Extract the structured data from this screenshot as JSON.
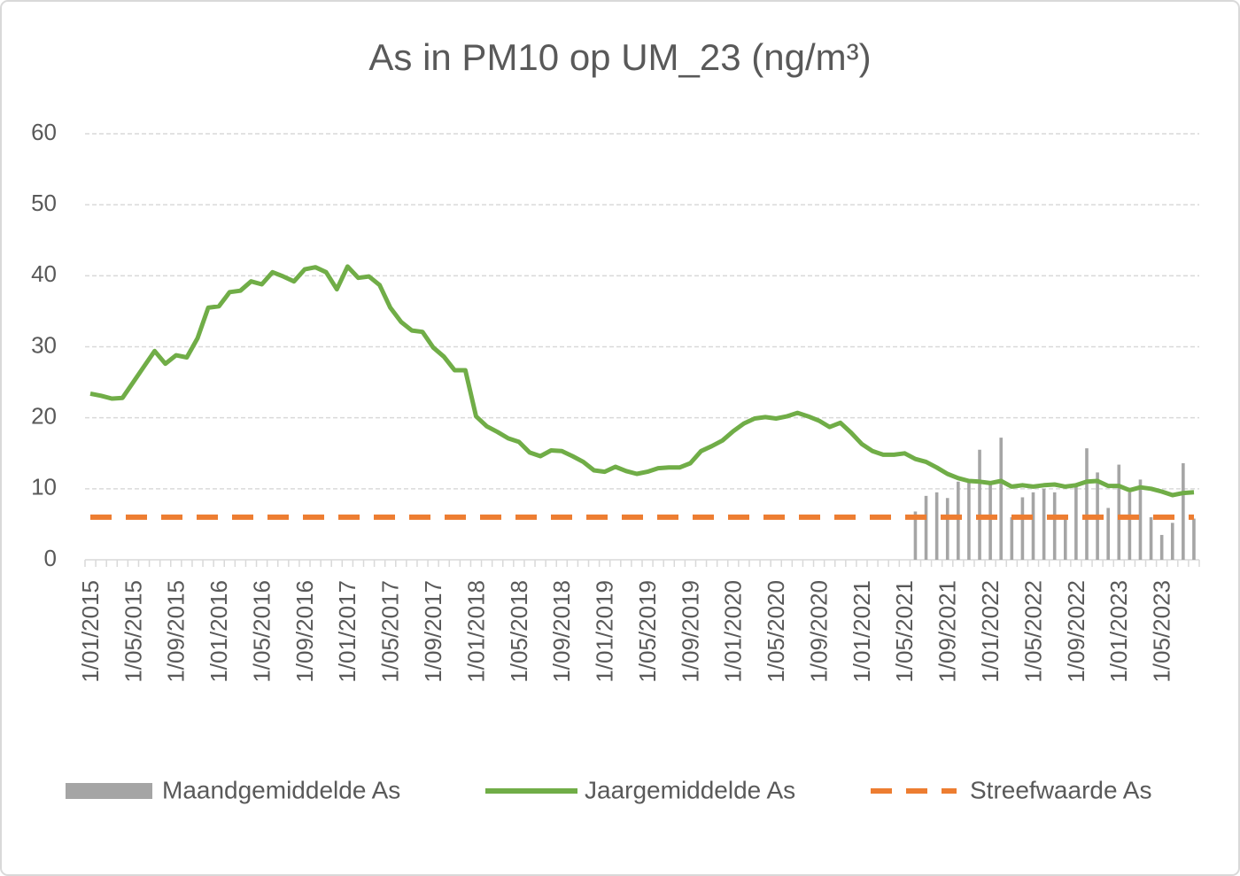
{
  "chart_data": {
    "type": "bar-line",
    "title": "As in PM10 op UM_23 (ng/m³)",
    "categories": [
      "1/01/2015",
      null,
      null,
      null,
      "1/05/2015",
      null,
      null,
      null,
      "1/09/2015",
      null,
      null,
      null,
      "1/01/2016",
      null,
      null,
      null,
      "1/05/2016",
      null,
      null,
      null,
      "1/09/2016",
      null,
      null,
      null,
      "1/01/2017",
      null,
      null,
      null,
      "1/05/2017",
      null,
      null,
      null,
      "1/09/2017",
      null,
      null,
      null,
      "1/01/2018",
      null,
      null,
      null,
      "1/05/2018",
      null,
      null,
      null,
      "1/09/2018",
      null,
      null,
      null,
      "1/01/2019",
      null,
      null,
      null,
      "1/05/2019",
      null,
      null,
      null,
      "1/09/2019",
      null,
      null,
      null,
      "1/01/2020",
      null,
      null,
      null,
      "1/05/2020",
      null,
      null,
      null,
      "1/09/2020",
      null,
      null,
      null,
      "1/01/2021",
      null,
      null,
      null,
      "1/05/2021",
      null,
      null,
      null,
      "1/09/2021",
      null,
      null,
      null,
      "1/01/2022",
      null,
      null,
      null,
      "1/05/2022",
      null,
      null,
      null,
      "1/09/2022",
      null,
      null,
      null,
      "1/01/2023",
      null,
      null,
      null,
      "1/05/2023",
      null,
      null,
      null
    ],
    "series": [
      {
        "name": "Maandgemiddelde As",
        "type": "bar",
        "color": "#a5a5a5",
        "values": [
          null,
          null,
          null,
          null,
          null,
          null,
          null,
          null,
          null,
          null,
          null,
          null,
          null,
          null,
          null,
          null,
          null,
          null,
          null,
          null,
          null,
          null,
          null,
          null,
          null,
          null,
          null,
          null,
          null,
          null,
          null,
          null,
          null,
          null,
          null,
          null,
          null,
          null,
          null,
          null,
          null,
          null,
          null,
          null,
          null,
          null,
          null,
          null,
          null,
          null,
          null,
          null,
          null,
          null,
          null,
          null,
          null,
          null,
          null,
          null,
          null,
          null,
          null,
          null,
          null,
          null,
          null,
          null,
          null,
          null,
          null,
          null,
          null,
          null,
          null,
          null,
          null,
          6.8,
          9,
          9.5,
          8.7,
          11,
          11,
          15.5,
          11,
          17.2,
          6,
          8.8,
          9.5,
          10,
          9.5,
          5.8,
          10.5,
          15.7,
          12.3,
          7.3,
          13.4,
          9.5,
          11.3,
          6,
          3.5,
          5.2,
          13.6,
          5.8
        ]
      },
      {
        "name": "Jaargemiddelde As",
        "type": "line",
        "color": "#70ad47",
        "values": [
          23.4,
          23.1,
          22.7,
          22.8,
          25,
          27.2,
          29.4,
          27.6,
          28.8,
          28.5,
          31.2,
          35.5,
          35.7,
          37.7,
          37.9,
          39.2,
          38.8,
          40.5,
          39.9,
          39.2,
          40.9,
          41.2,
          40.5,
          38.1,
          41.3,
          39.7,
          39.9,
          38.7,
          35.5,
          33.5,
          32.3,
          32.1,
          29.9,
          28.6,
          26.7,
          26.7,
          20.2,
          18.8,
          18,
          17.1,
          16.6,
          15.1,
          14.6,
          15.4,
          15.3,
          14.6,
          13.8,
          12.6,
          12.4,
          13.1,
          12.5,
          12.1,
          12.4,
          12.9,
          13,
          13,
          13.6,
          15.3,
          16,
          16.8,
          18.1,
          19.2,
          19.9,
          20.1,
          19.9,
          20.2,
          20.7,
          20.2,
          19.6,
          18.7,
          19.3,
          17.9,
          16.3,
          15.3,
          14.8,
          14.8,
          15,
          14.2,
          13.8,
          13,
          12.1,
          11.5,
          11.1,
          11,
          10.8,
          11.1,
          10.3,
          10.5,
          10.3,
          10.5,
          10.6,
          10.3,
          10.5,
          11,
          11.1,
          10.4,
          10.4,
          9.8,
          10.2,
          10,
          9.6,
          9.1,
          9.4,
          9.5
        ]
      },
      {
        "name": "Streefwaarde As",
        "type": "dashed-line",
        "color": "#ed7d31",
        "values": [
          6,
          6,
          6,
          6,
          6,
          6,
          6,
          6,
          6,
          6,
          6,
          6,
          6,
          6,
          6,
          6,
          6,
          6,
          6,
          6,
          6,
          6,
          6,
          6,
          6,
          6,
          6,
          6,
          6,
          6,
          6,
          6,
          6,
          6,
          6,
          6,
          6,
          6,
          6,
          6,
          6,
          6,
          6,
          6,
          6,
          6,
          6,
          6,
          6,
          6,
          6,
          6,
          6,
          6,
          6,
          6,
          6,
          6,
          6,
          6,
          6,
          6,
          6,
          6,
          6,
          6,
          6,
          6,
          6,
          6,
          6,
          6,
          6,
          6,
          6,
          6,
          6,
          6,
          6,
          6,
          6,
          6,
          6,
          6,
          6,
          6,
          6,
          6,
          6,
          6,
          6,
          6,
          6,
          6,
          6,
          6,
          6,
          6,
          6,
          6,
          6,
          6,
          6,
          6
        ]
      }
    ],
    "ylim": [
      0,
      60
    ],
    "yticks": [
      0,
      10,
      20,
      30,
      40,
      50,
      60
    ],
    "grid": true,
    "legend": "bottom"
  }
}
